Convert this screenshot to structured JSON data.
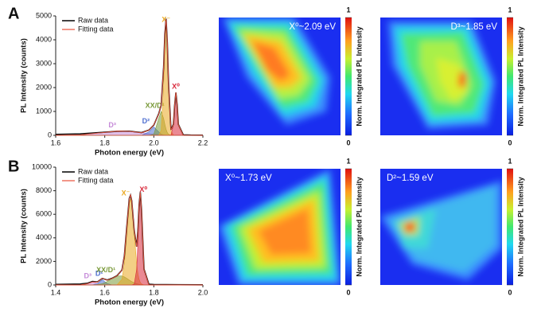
{
  "panel_labels": [
    "A",
    "B"
  ],
  "chart_data": [
    {
      "type": "line",
      "xlabel": "Photon energy (eV)",
      "ylabel": "PL Intensity (counts)",
      "xlim": [
        1.6,
        2.2
      ],
      "xticks": [
        1.6,
        1.8,
        {
          "value": 2.0,
          "label": "2.0"
        },
        2.2
      ],
      "ylim": [
        0,
        5000
      ],
      "yticks": [
        0,
        1000,
        2000,
        3000,
        4000,
        5000
      ],
      "x": [
        1.6,
        1.7,
        1.8,
        1.85,
        1.9,
        1.95,
        1.98,
        2.0,
        2.02,
        2.03,
        2.04,
        2.045,
        2.05,
        2.055,
        2.06,
        2.07,
        2.08,
        2.085,
        2.09,
        2.095,
        2.1,
        2.12,
        2.15,
        2.2
      ],
      "series": [
        {
          "name": "Raw data",
          "color": "#111111",
          "values": [
            40,
            60,
            130,
            170,
            175,
            115,
            220,
            430,
            900,
            1260,
            2860,
            4250,
            4880,
            3900,
            2180,
            230,
            470,
            1270,
            1790,
            1290,
            460,
            20,
            10,
            5
          ]
        },
        {
          "name": "Fitting data",
          "color": "#e8503a",
          "values": [
            0,
            18,
            123,
            175,
            168,
            110,
            214,
            442,
            886,
            1273,
            2841,
            4264,
            4864,
            3912,
            2161,
            221,
            458,
            1281,
            1804,
            1280,
            451,
            2,
            1,
            0
          ]
        }
      ],
      "components": [
        {
          "name": "D³",
          "color": "#c58ad8",
          "values": [
            0,
            18,
            123,
            175,
            168,
            109,
            70,
            48,
            31,
            24,
            18,
            16,
            14,
            12,
            11,
            8,
            6,
            5,
            4,
            4,
            3,
            2,
            1,
            0
          ]
        },
        {
          "name": "D²",
          "color": "#4f6fd0",
          "values": [
            0,
            0,
            0,
            0,
            0,
            1,
            144,
            350,
            144,
            47,
            10,
            4,
            1,
            0,
            0,
            0,
            0,
            0,
            0,
            0,
            0,
            0,
            0,
            0
          ]
        },
        {
          "name": "XX/D¹",
          "color": "#7a9a3a",
          "values": [
            0,
            0,
            0,
            0,
            0,
            0,
            0,
            44,
            707,
            1000,
            707,
            458,
            249,
            114,
            44,
            4,
            0,
            0,
            0,
            0,
            0,
            0,
            0,
            0
          ]
        },
        {
          "name": "X⁻",
          "color": "#eaa820",
          "values": [
            0,
            0,
            0,
            0,
            0,
            0,
            0,
            0,
            4,
            202,
            2106,
            3786,
            4600,
            3786,
            2106,
            202,
            4,
            0,
            0,
            0,
            0,
            0,
            0,
            0
          ]
        },
        {
          "name": "X⁰",
          "color": "#d8283a",
          "values": [
            0,
            0,
            0,
            0,
            0,
            0,
            0,
            0,
            0,
            0,
            0,
            0,
            0,
            0,
            0,
            7,
            448,
            1276,
            1800,
            1276,
            448,
            0,
            0,
            0
          ]
        }
      ]
    },
    {
      "type": "heatmap",
      "title": "X⁰~2.09 eV",
      "colorbar_label": "Norm. Integrated PL Intensity",
      "clim": [
        0,
        1
      ],
      "cticks": [
        0,
        1
      ]
    },
    {
      "type": "heatmap",
      "title": "D³~1.85 eV",
      "colorbar_label": "Norm. Integrated PL Intensity",
      "clim": [
        0,
        1
      ],
      "cticks": [
        0,
        1
      ]
    },
    {
      "type": "line",
      "xlabel": "Photon energy (eV)",
      "ylabel": "PL Intensity (counts)",
      "xlim": [
        1.4,
        2.0
      ],
      "xticks": [
        1.4,
        1.6,
        1.8,
        {
          "value": 2.0,
          "label": "2.0"
        }
      ],
      "ylim": [
        0,
        10000
      ],
      "yticks": [
        0,
        2000,
        4000,
        6000,
        8000,
        10000
      ],
      "x": [
        1.4,
        1.45,
        1.5,
        1.53,
        1.55,
        1.57,
        1.59,
        1.61,
        1.63,
        1.65,
        1.67,
        1.68,
        1.69,
        1.7,
        1.705,
        1.71,
        1.72,
        1.73,
        1.735,
        1.74,
        1.745,
        1.75,
        1.76,
        1.78,
        1.8,
        1.85,
        1.9,
        2.0
      ],
      "series": [
        {
          "name": "Raw data",
          "color": "#111111",
          "values": [
            50,
            60,
            80,
            150,
            300,
            260,
            560,
            420,
            570,
            790,
            1260,
            2480,
            5000,
            7350,
            7620,
            7150,
            4650,
            3250,
            4580,
            6800,
            7880,
            6340,
            1350,
            60,
            40,
            30,
            20,
            10
          ]
        },
        {
          "name": "Fitting data",
          "color": "#e8503a",
          "values": [
            0,
            0,
            1,
            104,
            258,
            245,
            565,
            400,
            557,
            777,
            1248,
            2499,
            4985,
            7316,
            7650,
            7188,
            4672,
            3238,
            4550,
            6789,
            7852,
            6360,
            1332,
            2,
            0,
            0,
            0,
            0
          ]
        }
      ],
      "components": [
        {
          "name": "D³",
          "color": "#c58ad8",
          "values": [
            0,
            0,
            1,
            103,
            250,
            103,
            7,
            0,
            0,
            0,
            0,
            0,
            0,
            0,
            0,
            0,
            0,
            0,
            0,
            0,
            0,
            0,
            0,
            0,
            0,
            0,
            0,
            0
          ]
        },
        {
          "name": "D²",
          "color": "#4f6fd0",
          "values": [
            0,
            0,
            0,
            0,
            2,
            112,
            450,
            112,
            2,
            0,
            0,
            0,
            0,
            0,
            0,
            0,
            0,
            0,
            0,
            0,
            0,
            0,
            0,
            0,
            0,
            0,
            0,
            0
          ]
        },
        {
          "name": "XX/D¹",
          "color": "#7a9a3a",
          "values": [
            0,
            0,
            0,
            1,
            6,
            30,
            108,
            288,
            555,
            768,
            768,
            679,
            555,
            416,
            350,
            288,
            184,
            108,
            80,
            59,
            42,
            30,
            13,
            2,
            0,
            0,
            0,
            0
          ]
        },
        {
          "name": "X⁻",
          "color": "#eaa820",
          "values": [
            0,
            0,
            0,
            0,
            0,
            0,
            0,
            0,
            0,
            9,
            480,
            1820,
            4430,
            6900,
            7300,
            6900,
            4430,
            1820,
            990,
            480,
            210,
            80,
            9,
            0,
            0,
            0,
            0,
            0
          ]
        },
        {
          "name": "X⁰",
          "color": "#d8283a",
          "values": [
            0,
            0,
            0,
            0,
            0,
            0,
            0,
            0,
            0,
            0,
            0,
            0,
            0,
            0,
            0,
            0,
            58,
            1310,
            3480,
            6250,
            7600,
            6250,
            1310,
            0,
            0,
            0,
            0,
            0
          ]
        }
      ]
    },
    {
      "type": "heatmap",
      "title": "X⁰~1.73 eV",
      "colorbar_label": "Norm. Integrated PL Intensity",
      "clim": [
        0,
        1
      ],
      "cticks": [
        0,
        1
      ]
    },
    {
      "type": "heatmap",
      "title": "D²~1.59 eV",
      "colorbar_label": "Norm. Integrated PL Intensity",
      "clim": [
        0,
        1
      ],
      "cticks": [
        0,
        1
      ]
    }
  ]
}
